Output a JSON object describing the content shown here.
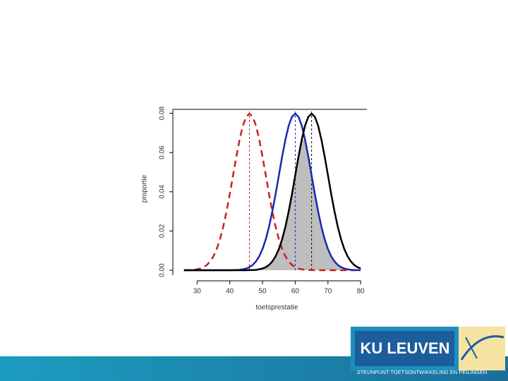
{
  "chart_data": {
    "type": "line",
    "x_label": "toetsprestatie",
    "y_label": "proportie",
    "x": [
      26,
      27,
      28,
      29,
      30,
      31,
      32,
      33,
      34,
      35,
      36,
      37,
      38,
      39,
      40,
      41,
      42,
      43,
      44,
      45,
      46,
      47,
      48,
      49,
      50,
      51,
      52,
      53,
      54,
      55,
      56,
      57,
      58,
      59,
      60,
      61,
      62,
      63,
      64,
      65,
      66,
      67,
      68,
      69,
      70,
      71,
      72,
      73,
      74,
      75,
      76,
      77,
      78,
      79,
      80
    ],
    "series": [
      {
        "color": "#c8201e",
        "dash": true,
        "values": [
          0,
          0.0001,
          0.0001,
          0.0002,
          0.0005,
          0.0009,
          0.0016,
          0.0027,
          0.0045,
          0.0071,
          0.0108,
          0.0158,
          0.0222,
          0.03,
          0.0388,
          0.0484,
          0.0579,
          0.0666,
          0.0737,
          0.0782,
          0.0798,
          0.0782,
          0.0737,
          0.0666,
          0.0579,
          0.0484,
          0.0388,
          0.03,
          0.0222,
          0.0158,
          0.0108,
          0.0071,
          0.0045,
          0.0027,
          0.0016,
          0.0009,
          0.0005,
          0.0002,
          0.0001,
          0.0001,
          0,
          0,
          0,
          0,
          0,
          0,
          0,
          0,
          0,
          0,
          0,
          0,
          0,
          0,
          0
        ]
      },
      {
        "color": "#1a28b0",
        "dash": false,
        "values": [
          0,
          0,
          0,
          0,
          0,
          0,
          0,
          0,
          0,
          0,
          0,
          0,
          0,
          0,
          0,
          0.0001,
          0.0001,
          0.0002,
          0.0005,
          0.0009,
          0.0016,
          0.0027,
          0.0045,
          0.0071,
          0.0108,
          0.0158,
          0.0222,
          0.03,
          0.0388,
          0.0484,
          0.0579,
          0.0666,
          0.0737,
          0.0782,
          0.0798,
          0.0782,
          0.0737,
          0.0666,
          0.0579,
          0.0484,
          0.0388,
          0.03,
          0.0222,
          0.0158,
          0.0108,
          0.0071,
          0.0045,
          0.0027,
          0.0016,
          0.0009,
          0.0005,
          0.0002,
          0.0001,
          0.0001,
          0
        ]
      },
      {
        "color": "#000000",
        "dash": false,
        "values": [
          0,
          0,
          0,
          0,
          0,
          0,
          0,
          0,
          0,
          0,
          0,
          0,
          0,
          0,
          0,
          0,
          0,
          0,
          0,
          0,
          0.0001,
          0.0001,
          0.0002,
          0.0005,
          0.0009,
          0.0016,
          0.0027,
          0.0045,
          0.0071,
          0.0108,
          0.0158,
          0.0222,
          0.03,
          0.0388,
          0.0484,
          0.0579,
          0.0666,
          0.0737,
          0.0782,
          0.0798,
          0.0782,
          0.0737,
          0.0666,
          0.0579,
          0.0484,
          0.0388,
          0.03,
          0.0222,
          0.0158,
          0.0108,
          0.0071,
          0.0045,
          0.0027,
          0.0016,
          0.0009
        ]
      }
    ],
    "overlap_fill": "#bebebe",
    "reference_lines": [
      {
        "x": 46,
        "color": "#c8201e"
      },
      {
        "x": 60,
        "color": "#1a28b0"
      },
      {
        "x": 65,
        "color": "#000000"
      }
    ],
    "xlim": [
      22.6,
      81.9
    ],
    "xticks": [
      30,
      40,
      50,
      60,
      70,
      80
    ],
    "ylim": [
      -0.0025,
      0.082
    ],
    "yticks": [
      {
        "value": 0,
        "label": "0.00"
      },
      {
        "value": 0.02,
        "label": "0.02"
      },
      {
        "value": 0.04,
        "label": "0.04"
      },
      {
        "value": 0.06,
        "label": "0.06"
      },
      {
        "value": 0.08,
        "label": "0.08"
      }
    ]
  },
  "footer": {
    "logo": "KU LEUVEN",
    "caption": "STEUNPUNT TOETSONTWIKKELING EN PEILINGEN"
  }
}
